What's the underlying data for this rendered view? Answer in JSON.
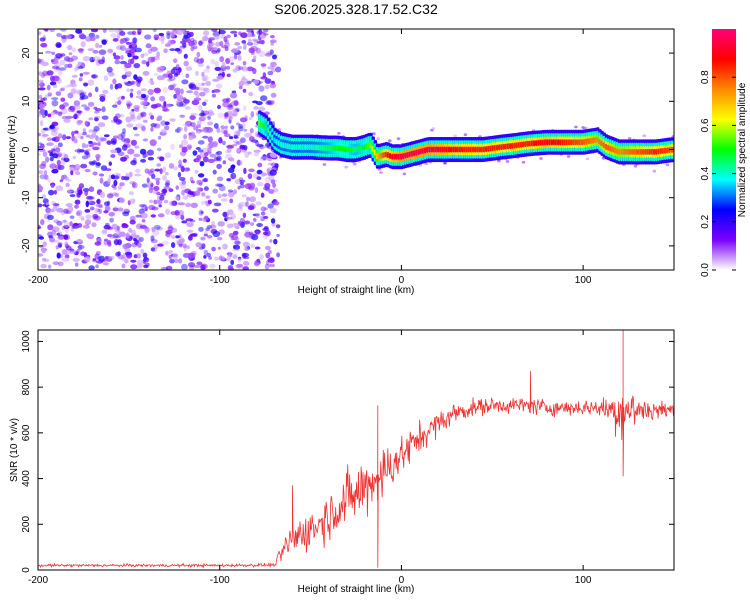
{
  "title": "S206.2025.328.17.52.C32",
  "chart_data": [
    {
      "type": "heatmap",
      "name": "spectrogram",
      "xlabel": "Height of straight line (km)",
      "ylabel": "Frequency (Hz)",
      "xlim": [
        -200,
        150
      ],
      "ylim": [
        -25,
        25
      ],
      "xticks": [
        "-200",
        "-100",
        "0",
        "100"
      ],
      "xtick_values": [
        -200,
        -100,
        0,
        100
      ],
      "yticks": [
        "-20",
        "-10",
        "0",
        "10",
        "20"
      ],
      "ytick_values": [
        -20,
        -10,
        0,
        10,
        20
      ],
      "noise_region_x": [
        -200,
        -70
      ],
      "ridge": {
        "x": [
          -78,
          -74,
          -70,
          -66,
          -60,
          -50,
          -40,
          -35,
          -30,
          -25,
          -20,
          -17,
          -13,
          -8,
          -5,
          0,
          5,
          15,
          25,
          35,
          45,
          55,
          62,
          70,
          80,
          90,
          100,
          108,
          113,
          120,
          130,
          140,
          150
        ],
        "frequency": [
          5.5,
          4.5,
          2.0,
          1.0,
          0.5,
          0.5,
          0.3,
          0.3,
          0.0,
          0.0,
          0.5,
          1.0,
          -1.5,
          -1.0,
          -1.5,
          -1.5,
          -1.0,
          0.0,
          0.0,
          0.0,
          0.0,
          0.5,
          0.8,
          1.2,
          1.5,
          1.5,
          1.5,
          2.0,
          0.5,
          -0.5,
          -0.5,
          -0.5,
          0.0
        ],
        "amplitude": [
          0.55,
          0.45,
          0.35,
          0.4,
          0.4,
          0.4,
          0.45,
          0.5,
          0.5,
          0.45,
          0.5,
          0.55,
          0.7,
          0.85,
          0.9,
          0.95,
          0.95,
          0.95,
          0.9,
          0.85,
          0.85,
          0.85,
          0.85,
          0.85,
          0.9,
          0.85,
          0.8,
          0.75,
          0.8,
          0.75,
          0.8,
          0.85,
          0.8
        ]
      }
    },
    {
      "type": "line",
      "name": "snr",
      "xlabel": "Height of straight line (km)",
      "ylabel": "SNR (10 * v/v)",
      "xlim": [
        -200,
        150
      ],
      "ylim": [
        0,
        1050
      ],
      "xticks": [
        "-200",
        "-100",
        "0",
        "100"
      ],
      "xtick_values": [
        -200,
        -100,
        0,
        100
      ],
      "yticks": [
        "0",
        "200",
        "400",
        "600",
        "800",
        "1000"
      ],
      "ytick_values": [
        0,
        200,
        400,
        600,
        800,
        1000
      ],
      "color": "#ee3333",
      "envelope": {
        "x": [
          -200,
          -150,
          -100,
          -70,
          -62,
          -55,
          -45,
          -35,
          -25,
          -15,
          -10,
          -5,
          0,
          10,
          20,
          30,
          40,
          50,
          60,
          70,
          80,
          90,
          100,
          110,
          115,
          120,
          125,
          130,
          140,
          150
        ],
        "mean": [
          20,
          20,
          20,
          22,
          120,
          160,
          200,
          280,
          330,
          400,
          420,
          470,
          500,
          580,
          640,
          690,
          710,
          720,
          720,
          720,
          710,
          710,
          710,
          710,
          700,
          700,
          700,
          700,
          700,
          700
        ],
        "noise": [
          8,
          8,
          8,
          10,
          90,
          110,
          120,
          150,
          170,
          170,
          160,
          140,
          120,
          90,
          70,
          60,
          50,
          45,
          45,
          50,
          45,
          45,
          45,
          50,
          90,
          160,
          150,
          90,
          60,
          50
        ]
      },
      "peaks": [
        {
          "x": -60,
          "y": 370
        },
        {
          "x": -13,
          "y": 720
        },
        {
          "x": -13,
          "y": 10
        },
        {
          "x": 71,
          "y": 870
        },
        {
          "x": 122,
          "y": 1050
        },
        {
          "x": 122,
          "y": 410
        }
      ]
    }
  ],
  "colorbar": {
    "label": "Normalized spectral amplitude",
    "ticks": [
      "0.0",
      "0.2",
      "0.4",
      "0.6",
      "0.8"
    ],
    "tick_values": [
      0.0,
      0.2,
      0.4,
      0.6,
      0.8
    ],
    "range": [
      0,
      1
    ],
    "stops": [
      "#ffffff",
      "#7b00ff",
      "#0000ff",
      "#00ffff",
      "#00ff00",
      "#ffff00",
      "#ff8800",
      "#ff0000",
      "#ff0077"
    ]
  }
}
